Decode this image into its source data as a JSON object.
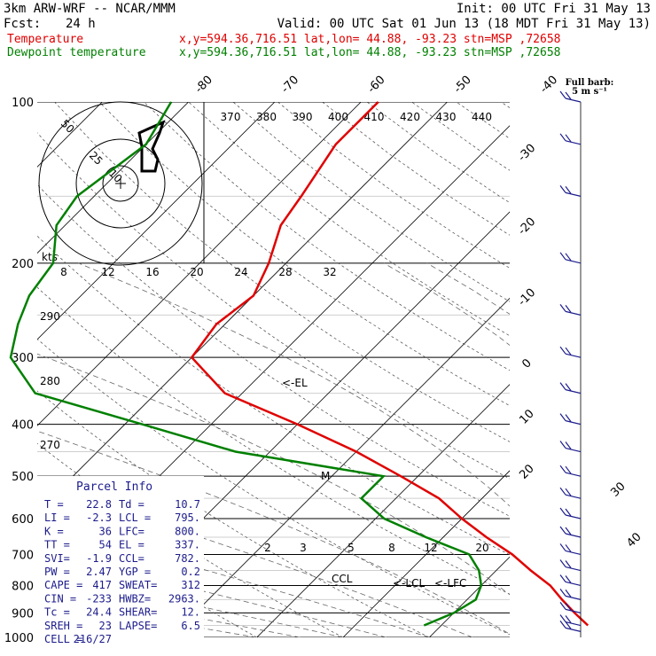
{
  "header": {
    "model": "3km ARW-WRF -- NCAR/MMM",
    "init": "Init: 00 UTC Fri 31 May 13",
    "fcst_label": "Fcst:",
    "fcst_value": "24 h",
    "valid": "Valid: 00 UTC Sat 01 Jun 13 (18 MDT Fri 31 May 13)",
    "series": [
      {
        "name": "Temperature",
        "info": "x,y=594.36,716.51   lat,lon= 44.88, -93.23  stn=MSP ,72658",
        "color": "#e00000"
      },
      {
        "name": "Dewpoint temperature",
        "info": "x,y=594.36,716.51   lat,lon= 44.88, -93.23  stn=MSP ,72658",
        "color": "#008000"
      }
    ]
  },
  "barb_legend": {
    "line1": "Full barb:",
    "line2": "5 m s⁻¹"
  },
  "chart_data": {
    "type": "line",
    "title": "Skew-T log-P sounding",
    "ylabel": "",
    "y_scale": "log",
    "ylim": [
      1000,
      100
    ],
    "pressure_levels": [
      100,
      200,
      300,
      400,
      500,
      600,
      700,
      800,
      900,
      1000
    ],
    "isotherm_labels": [
      -80,
      -70,
      -60,
      -50,
      -40,
      -30,
      -20,
      -10,
      0,
      10,
      20,
      30,
      40
    ],
    "theta_labels": [
      370,
      380,
      390,
      400,
      410,
      420,
      430,
      440
    ],
    "mixing_ratio_labels": [
      2,
      3,
      5,
      8,
      12,
      20
    ],
    "side_theta_labels": [
      290,
      280,
      270
    ],
    "hodograph": {
      "unit_label": "kts",
      "rings": [
        10,
        25,
        50
      ],
      "speed_scale": [
        8,
        12,
        16,
        20,
        24,
        28,
        32
      ]
    },
    "series": [
      {
        "name": "Temperature",
        "color": "#e00000",
        "points": [
          [
            100,
            -58
          ],
          [
            120,
            -58
          ],
          [
            150,
            -56
          ],
          [
            170,
            -55
          ],
          [
            200,
            -52
          ],
          [
            230,
            -50
          ],
          [
            260,
            -51
          ],
          [
            300,
            -50
          ],
          [
            350,
            -42
          ],
          [
            400,
            -30
          ],
          [
            450,
            -20
          ],
          [
            500,
            -12
          ],
          [
            550,
            -5
          ],
          [
            600,
            0
          ],
          [
            650,
            5
          ],
          [
            700,
            10
          ],
          [
            750,
            14
          ],
          [
            800,
            18
          ],
          [
            850,
            21
          ],
          [
            900,
            24
          ],
          [
            950,
            27
          ]
        ]
      },
      {
        "name": "Dewpoint temperature",
        "color": "#008000",
        "points": [
          [
            100,
            -82
          ],
          [
            120,
            -80
          ],
          [
            150,
            -82
          ],
          [
            170,
            -81
          ],
          [
            200,
            -77
          ],
          [
            230,
            -76
          ],
          [
            260,
            -74
          ],
          [
            300,
            -71
          ],
          [
            350,
            -64
          ],
          [
            400,
            -48
          ],
          [
            450,
            -34
          ],
          [
            500,
            -14
          ],
          [
            550,
            -14
          ],
          [
            600,
            -9
          ],
          [
            650,
            -2
          ],
          [
            700,
            5
          ],
          [
            750,
            8
          ],
          [
            800,
            10
          ],
          [
            850,
            11
          ],
          [
            900,
            10
          ],
          [
            950,
            8
          ]
        ]
      }
    ],
    "annotations": [
      "<-EL",
      "M",
      "CCL",
      "<-LCL",
      "<-LFC"
    ],
    "wind_barbs_levels": [
      100,
      120,
      150,
      200,
      250,
      300,
      350,
      400,
      450,
      500,
      550,
      600,
      650,
      700,
      750,
      800,
      850,
      900,
      950,
      975
    ]
  },
  "parcel_info": {
    "title": "Parcel Info",
    "rows": [
      [
        "T  =",
        "22.8",
        "Td =",
        "10.7"
      ],
      [
        "LI =",
        "-2.3",
        "LCL =",
        "795."
      ],
      [
        "K  =",
        "36",
        "LFC=",
        "800."
      ],
      [
        "TT =",
        "54",
        "EL =",
        "337."
      ],
      [
        "SVI=",
        "-1.9",
        "CCL=",
        "782."
      ],
      [
        "PW =",
        "2.47",
        "YGP =",
        "0.2"
      ],
      [
        "CAPE =",
        "417",
        "SWEAT=",
        "312"
      ],
      [
        "CIN =",
        "-233",
        "HWBZ=",
        "2963."
      ],
      [
        "Tc =",
        "24.4",
        "SHEAR=",
        "12."
      ],
      [
        "SREH =",
        "23",
        "LAPSE=",
        "6.5"
      ],
      [
        "CELL =",
        "216/27",
        "",
        ""
      ]
    ]
  }
}
